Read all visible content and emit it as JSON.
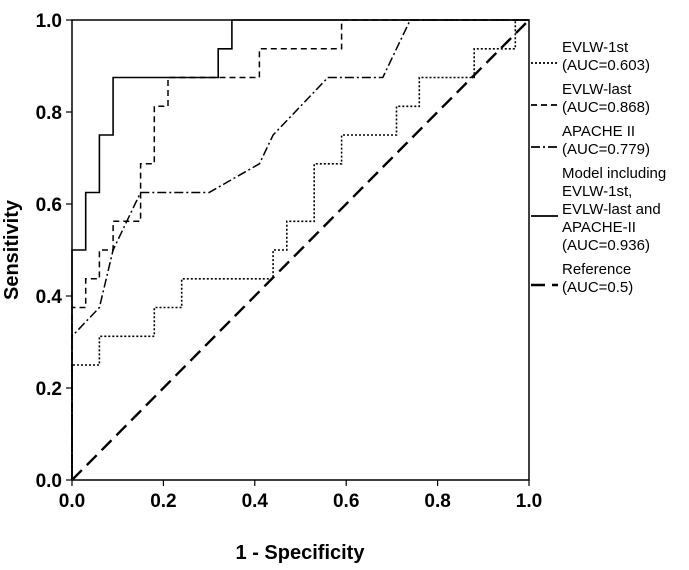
{
  "chart_data": {
    "type": "line",
    "xlabel": "1 - Specificity",
    "ylabel": "Sensitivity",
    "xlim": [
      0.0,
      1.0
    ],
    "ylim": [
      0.0,
      1.0
    ],
    "x_ticks": [
      "0.0",
      "0.2",
      "0.4",
      "0.6",
      "0.8",
      "1.0"
    ],
    "y_ticks": [
      "0.0",
      "0.2",
      "0.4",
      "0.6",
      "0.8",
      "1.0"
    ],
    "grid": false,
    "legend_position": "right",
    "series": [
      {
        "name": "EVLW-1st",
        "auc_label": "(AUC=0.603)",
        "dash": "dotted",
        "points": [
          [
            0,
            0
          ],
          [
            0,
            0.25
          ],
          [
            0.06,
            0.25
          ],
          [
            0.06,
            0.3125
          ],
          [
            0.18,
            0.3125
          ],
          [
            0.18,
            0.375
          ],
          [
            0.24,
            0.375
          ],
          [
            0.24,
            0.4375
          ],
          [
            0.44,
            0.4375
          ],
          [
            0.44,
            0.5
          ],
          [
            0.47,
            0.5
          ],
          [
            0.47,
            0.5625
          ],
          [
            0.53,
            0.5625
          ],
          [
            0.53,
            0.6875
          ],
          [
            0.59,
            0.6875
          ],
          [
            0.59,
            0.75
          ],
          [
            0.71,
            0.75
          ],
          [
            0.71,
            0.8125
          ],
          [
            0.76,
            0.8125
          ],
          [
            0.76,
            0.875
          ],
          [
            0.88,
            0.875
          ],
          [
            0.88,
            0.9375
          ],
          [
            0.97,
            0.9375
          ],
          [
            0.97,
            1
          ],
          [
            1,
            1
          ]
        ]
      },
      {
        "name": "EVLW-last",
        "auc_label": "(AUC=0.868)",
        "dash": "dashed",
        "points": [
          [
            0,
            0
          ],
          [
            0,
            0.375
          ],
          [
            0.03,
            0.375
          ],
          [
            0.03,
            0.4375
          ],
          [
            0.06,
            0.4375
          ],
          [
            0.06,
            0.5
          ],
          [
            0.09,
            0.5
          ],
          [
            0.09,
            0.5625
          ],
          [
            0.15,
            0.5625
          ],
          [
            0.15,
            0.6875
          ],
          [
            0.18,
            0.6875
          ],
          [
            0.18,
            0.8125
          ],
          [
            0.21,
            0.8125
          ],
          [
            0.21,
            0.875
          ],
          [
            0.41,
            0.875
          ],
          [
            0.41,
            0.9375
          ],
          [
            0.59,
            0.9375
          ],
          [
            0.59,
            1
          ],
          [
            1,
            1
          ]
        ]
      },
      {
        "name": "APACHE II",
        "auc_label": "(AUC=0.779)",
        "dash": "dashdot",
        "points": [
          [
            0,
            0
          ],
          [
            0,
            0.3125
          ],
          [
            0.06,
            0.375
          ],
          [
            0.09,
            0.5
          ],
          [
            0.12,
            0.5625
          ],
          [
            0.15,
            0.625
          ],
          [
            0.3,
            0.625
          ],
          [
            0.41,
            0.6875
          ],
          [
            0.44,
            0.75
          ],
          [
            0.5,
            0.8125
          ],
          [
            0.56,
            0.875
          ],
          [
            0.68,
            0.875
          ],
          [
            0.74,
            1
          ],
          [
            1,
            1
          ]
        ]
      },
      {
        "name": "Model including EVLW-1st, EVLW-last and APACHE-II",
        "name_lines": [
          "Model including",
          "EVLW-1st,",
          "EVLW-last and",
          "APACHE-II"
        ],
        "auc_label": "(AUC=0.936)",
        "dash": "solid",
        "points": [
          [
            0,
            0
          ],
          [
            0,
            0.5
          ],
          [
            0.03,
            0.5
          ],
          [
            0.03,
            0.625
          ],
          [
            0.06,
            0.625
          ],
          [
            0.06,
            0.75
          ],
          [
            0.09,
            0.75
          ],
          [
            0.09,
            0.875
          ],
          [
            0.32,
            0.875
          ],
          [
            0.32,
            0.9375
          ],
          [
            0.35,
            0.9375
          ],
          [
            0.35,
            1
          ],
          [
            1,
            1
          ]
        ]
      },
      {
        "name": "Reference",
        "auc_label": "(AUC=0.5)",
        "dash": "longdash",
        "points": [
          [
            0,
            0
          ],
          [
            1,
            1
          ]
        ]
      }
    ]
  }
}
